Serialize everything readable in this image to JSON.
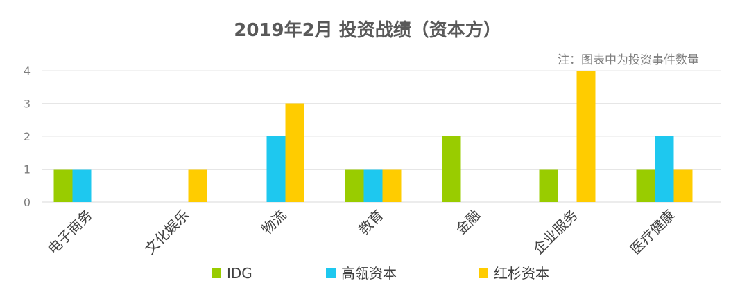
{
  "chart_data": {
    "type": "bar",
    "title": "2019年2月 投资战绩（资本方）",
    "note": "注：图表中为投资事件数量",
    "categories": [
      "电子商务",
      "文化娱乐",
      "物流",
      "教育",
      "金融",
      "企业服务",
      "医疗健康"
    ],
    "series": [
      {
        "name": "IDG",
        "color": "#99cc00",
        "values": [
          1,
          0,
          0,
          1,
          2,
          1,
          1
        ]
      },
      {
        "name": "高瓴资本",
        "color": "#1ec8ef",
        "values": [
          1,
          0,
          2,
          1,
          0,
          0,
          2
        ]
      },
      {
        "name": "红杉资本",
        "color": "#ffcc00",
        "values": [
          0,
          1,
          3,
          1,
          0,
          4,
          1
        ]
      }
    ],
    "ylim": [
      0,
      4
    ],
    "yticks": [
      0,
      1,
      2,
      3,
      4
    ],
    "grid": true,
    "legend": "bottom"
  }
}
